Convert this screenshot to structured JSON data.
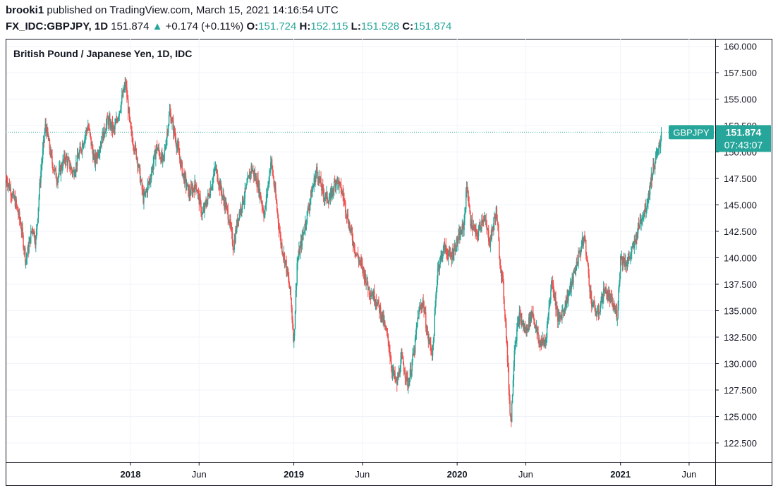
{
  "header": {
    "publisher": "brooki1",
    "published_text": "published on TradingView.com, March 15, 2021 14:16:54 UTC",
    "symbol": "FX_IDC:GBPJPY, 1D",
    "last": "151.874",
    "up_arrow": "▲",
    "change": "+0.174 (+0.11%)",
    "open_label": "O:",
    "open_value": "151.724",
    "high_label": "H:",
    "high_value": "152.115",
    "low_label": "L:",
    "low_value": "151.528",
    "close_label": "C:",
    "close_value": "151.874"
  },
  "colors": {
    "up": "#26a69a",
    "down": "#ef5350",
    "grid": "#f0f3fa",
    "axis_text": "#131722"
  },
  "chart_data": {
    "type": "candlestick",
    "title": "British Pound / Japanese Yen, 1D, IDC",
    "symbol_tag": "GBPJPY",
    "last_price_label": "151.874",
    "countdown_label": "07:43:07",
    "last_price": 151.874,
    "ylim": [
      120.7,
      160.7
    ],
    "y_ticks": [
      "160.000",
      "157.500",
      "155.000",
      "152.500",
      "150.000",
      "147.500",
      "145.000",
      "142.500",
      "140.000",
      "137.500",
      "135.000",
      "132.500",
      "130.000",
      "127.500",
      "125.000",
      "122.500"
    ],
    "x_ticks": [
      {
        "label": "2018",
        "t": 2018.0,
        "bold": true
      },
      {
        "label": "Jun",
        "t": 2018.42,
        "bold": false
      },
      {
        "label": "2019",
        "t": 2019.0,
        "bold": true
      },
      {
        "label": "Jun",
        "t": 2019.42,
        "bold": false
      },
      {
        "label": "2020",
        "t": 2020.0,
        "bold": true
      },
      {
        "label": "Jun",
        "t": 2020.42,
        "bold": false
      },
      {
        "label": "2021",
        "t": 2021.0,
        "bold": true
      },
      {
        "label": "Jun",
        "t": 2021.42,
        "bold": false
      }
    ],
    "x_range": [
      2017.24,
      2021.58
    ],
    "path": [
      [
        2017.24,
        147.5
      ],
      [
        2017.3,
        145.0
      ],
      [
        2017.33,
        143.0
      ],
      [
        2017.36,
        139.7
      ],
      [
        2017.4,
        143.0
      ],
      [
        2017.42,
        141.5
      ],
      [
        2017.45,
        148.0
      ],
      [
        2017.48,
        152.6
      ],
      [
        2017.52,
        149.0
      ],
      [
        2017.55,
        147.5
      ],
      [
        2017.6,
        149.5
      ],
      [
        2017.65,
        148.0
      ],
      [
        2017.7,
        150.5
      ],
      [
        2017.74,
        152.5
      ],
      [
        2017.78,
        149.0
      ],
      [
        2017.82,
        151.0
      ],
      [
        2017.86,
        153.0
      ],
      [
        2017.9,
        152.0
      ],
      [
        2017.94,
        154.5
      ],
      [
        2017.97,
        156.5
      ],
      [
        2018.0,
        152.0
      ],
      [
        2018.04,
        149.5
      ],
      [
        2018.08,
        145.5
      ],
      [
        2018.12,
        147.5
      ],
      [
        2018.16,
        150.5
      ],
      [
        2018.2,
        149.0
      ],
      [
        2018.24,
        153.8
      ],
      [
        2018.28,
        151.0
      ],
      [
        2018.32,
        148.0
      ],
      [
        2018.36,
        146.0
      ],
      [
        2018.4,
        147.0
      ],
      [
        2018.44,
        144.0
      ],
      [
        2018.48,
        146.0
      ],
      [
        2018.52,
        148.5
      ],
      [
        2018.56,
        146.0
      ],
      [
        2018.6,
        144.0
      ],
      [
        2018.63,
        141.0
      ],
      [
        2018.66,
        144.0
      ],
      [
        2018.7,
        146.0
      ],
      [
        2018.74,
        148.5
      ],
      [
        2018.78,
        147.0
      ],
      [
        2018.82,
        144.0
      ],
      [
        2018.86,
        149.3
      ],
      [
        2018.89,
        145.5
      ],
      [
        2018.92,
        141.5
      ],
      [
        2018.95,
        139.5
      ],
      [
        2018.98,
        136.5
      ],
      [
        2019.0,
        132.0
      ],
      [
        2019.02,
        139.5
      ],
      [
        2019.06,
        142.5
      ],
      [
        2019.1,
        145.5
      ],
      [
        2019.14,
        148.3
      ],
      [
        2019.18,
        146.0
      ],
      [
        2019.22,
        145.5
      ],
      [
        2019.26,
        147.5
      ],
      [
        2019.3,
        146.0
      ],
      [
        2019.34,
        143.0
      ],
      [
        2019.38,
        140.5
      ],
      [
        2019.42,
        139.0
      ],
      [
        2019.46,
        137.0
      ],
      [
        2019.5,
        136.2
      ],
      [
        2019.54,
        134.5
      ],
      [
        2019.58,
        132.0
      ],
      [
        2019.6,
        129.5
      ],
      [
        2019.63,
        128.0
      ],
      [
        2019.66,
        130.5
      ],
      [
        2019.7,
        128.0
      ],
      [
        2019.74,
        131.5
      ],
      [
        2019.76,
        134.5
      ],
      [
        2019.79,
        136.0
      ],
      [
        2019.82,
        132.5
      ],
      [
        2019.85,
        131.0
      ],
      [
        2019.88,
        139.0
      ],
      [
        2019.92,
        141.0
      ],
      [
        2019.96,
        140.0
      ],
      [
        2020.0,
        141.5
      ],
      [
        2020.04,
        143.0
      ],
      [
        2020.06,
        147.0
      ],
      [
        2020.08,
        143.5
      ],
      [
        2020.12,
        142.0
      ],
      [
        2020.16,
        144.0
      ],
      [
        2020.2,
        141.5
      ],
      [
        2020.24,
        144.5
      ],
      [
        2020.26,
        140.0
      ],
      [
        2020.28,
        137.5
      ],
      [
        2020.3,
        133.0
      ],
      [
        2020.32,
        126.5
      ],
      [
        2020.33,
        124.3
      ],
      [
        2020.35,
        131.5
      ],
      [
        2020.38,
        134.5
      ],
      [
        2020.42,
        133.0
      ],
      [
        2020.46,
        135.0
      ],
      [
        2020.5,
        132.0
      ],
      [
        2020.54,
        132.0
      ],
      [
        2020.58,
        138.0
      ],
      [
        2020.62,
        134.0
      ],
      [
        2020.66,
        135.5
      ],
      [
        2020.7,
        137.5
      ],
      [
        2020.74,
        140.0
      ],
      [
        2020.78,
        142.0
      ],
      [
        2020.8,
        139.0
      ],
      [
        2020.82,
        136.0
      ],
      [
        2020.86,
        134.5
      ],
      [
        2020.9,
        137.0
      ],
      [
        2020.94,
        136.0
      ],
      [
        2020.98,
        134.5
      ],
      [
        2021.0,
        140.0
      ],
      [
        2021.04,
        139.5
      ],
      [
        2021.08,
        141.0
      ],
      [
        2021.12,
        143.5
      ],
      [
        2021.16,
        145.0
      ],
      [
        2021.2,
        148.5
      ],
      [
        2021.24,
        150.5
      ],
      [
        2021.25,
        151.874
      ]
    ]
  }
}
